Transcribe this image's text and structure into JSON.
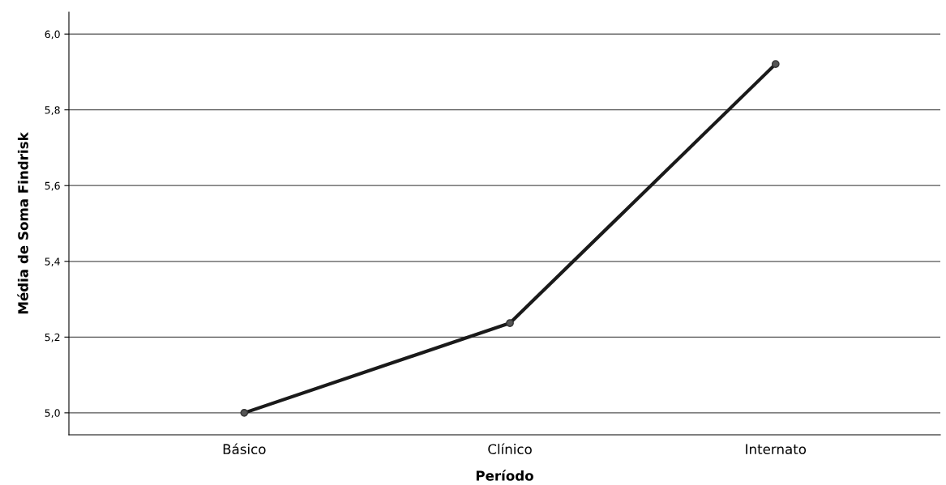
{
  "chart_data": {
    "type": "line",
    "xlabel": "Período",
    "ylabel": "Média de Soma Findrisk",
    "categories": [
      "Básico",
      "Clínico",
      "Internato"
    ],
    "series": [
      {
        "color": "#1a1a1a",
        "values": [
          5.0,
          5.237,
          5.921
        ]
      }
    ],
    "ylim": [
      4.942,
      6.058
    ],
    "yticks": [
      {
        "value": 5.0,
        "label": "5,0"
      },
      {
        "value": 5.2,
        "label": "5,2"
      },
      {
        "value": 5.4,
        "label": "5,4"
      },
      {
        "value": 5.6,
        "label": "5,6"
      },
      {
        "value": 5.8,
        "label": "5,8"
      },
      {
        "value": 6.0,
        "label": "6,0"
      }
    ],
    "grid": "y",
    "marker": "circle",
    "line_style": "solid"
  }
}
